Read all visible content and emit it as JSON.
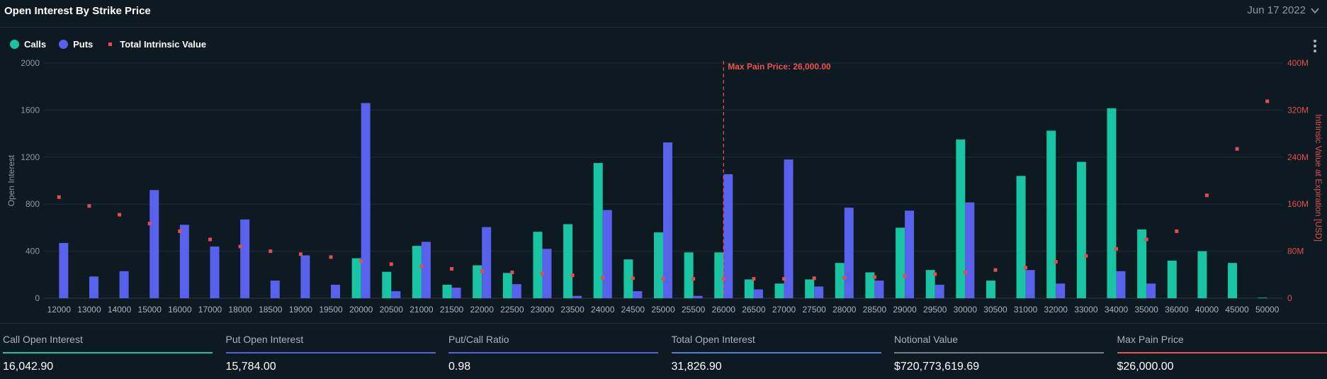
{
  "header": {
    "title": "Open Interest By Strike Price",
    "date": "Jun 17 2022"
  },
  "legend": {
    "calls": "Calls",
    "puts": "Puts",
    "intrinsic": "Total Intrinsic Value"
  },
  "colors": {
    "calls": "#19c4a2",
    "puts": "#5860ec",
    "intrinsic": "#e54d4d",
    "max_pain": "#f0534f",
    "total_oi": "#5a7bd8"
  },
  "stats": [
    {
      "label": "Call Open Interest",
      "value": "16,042.90",
      "color": "#19c4a2"
    },
    {
      "label": "Put Open Interest",
      "value": "15,784.00",
      "color": "#5860ec"
    },
    {
      "label": "Put/Call Ratio",
      "value": "0.98",
      "color": "#5860ec"
    },
    {
      "label": "Total Open Interest",
      "value": "31,826.90",
      "color": "#5a7bd8"
    },
    {
      "label": "Notional Value",
      "value": "$720,773,619.69",
      "color": "#6f7f8c"
    },
    {
      "label": "Max Pain Price",
      "value": "$26,000.00",
      "color": "#f0534f"
    }
  ],
  "chart_data": {
    "type": "bar",
    "ylabel": "Open Interest",
    "y2label": "Intrinsic Value at Expiration [USD]",
    "ylim": [
      0,
      2000
    ],
    "yticks": [
      "0",
      "400",
      "800",
      "1200",
      "1600",
      "2000"
    ],
    "y2lim": [
      0,
      400
    ],
    "y2ticks": [
      "0",
      "80M",
      "160M",
      "240M",
      "320M",
      "400M"
    ],
    "grid": true,
    "max_pain_label": "Max Pain Price: 26,000.00",
    "max_pain_category": "26000",
    "categories": [
      "12000",
      "13000",
      "14000",
      "15000",
      "16000",
      "17000",
      "18000",
      "18500",
      "19000",
      "19500",
      "20000",
      "20500",
      "21000",
      "21500",
      "22000",
      "22500",
      "23000",
      "23500",
      "24000",
      "24500",
      "25000",
      "25500",
      "26000",
      "26500",
      "27000",
      "27500",
      "28000",
      "28500",
      "29000",
      "29500",
      "30000",
      "30500",
      "31000",
      "32000",
      "33000",
      "34000",
      "35000",
      "36000",
      "40000",
      "45000",
      "50000"
    ],
    "series": [
      {
        "name": "Calls",
        "kind": "bar",
        "axis": "left",
        "values": [
          0,
          0,
          0,
          0,
          0,
          0,
          0,
          0,
          0,
          0,
          340,
          225,
          445,
          115,
          280,
          215,
          565,
          630,
          1150,
          330,
          560,
          390,
          390,
          160,
          125,
          160,
          300,
          220,
          600,
          240,
          1350,
          150,
          1040,
          1425,
          1160,
          1615,
          585,
          320,
          400,
          300,
          5
        ]
      },
      {
        "name": "Puts",
        "kind": "bar",
        "axis": "left",
        "values": [
          470,
          185,
          230,
          920,
          625,
          440,
          670,
          150,
          365,
          115,
          1660,
          60,
          480,
          90,
          605,
          120,
          420,
          20,
          750,
          60,
          1325,
          20,
          1055,
          75,
          1180,
          100,
          770,
          150,
          745,
          115,
          815,
          0,
          240,
          125,
          0,
          230,
          125,
          0,
          0,
          0,
          0
        ]
      },
      {
        "name": "Total Intrinsic Value",
        "kind": "marker",
        "axis": "right",
        "values": [
          172,
          157,
          142,
          127,
          114,
          100,
          88,
          80,
          75,
          70,
          63,
          58,
          54,
          50,
          46,
          44,
          42,
          39,
          35,
          34,
          33,
          33,
          33,
          33,
          33,
          34,
          35,
          36,
          38,
          41,
          44,
          48,
          52,
          62,
          72,
          84,
          100,
          114,
          175,
          254,
          335
        ]
      }
    ]
  }
}
